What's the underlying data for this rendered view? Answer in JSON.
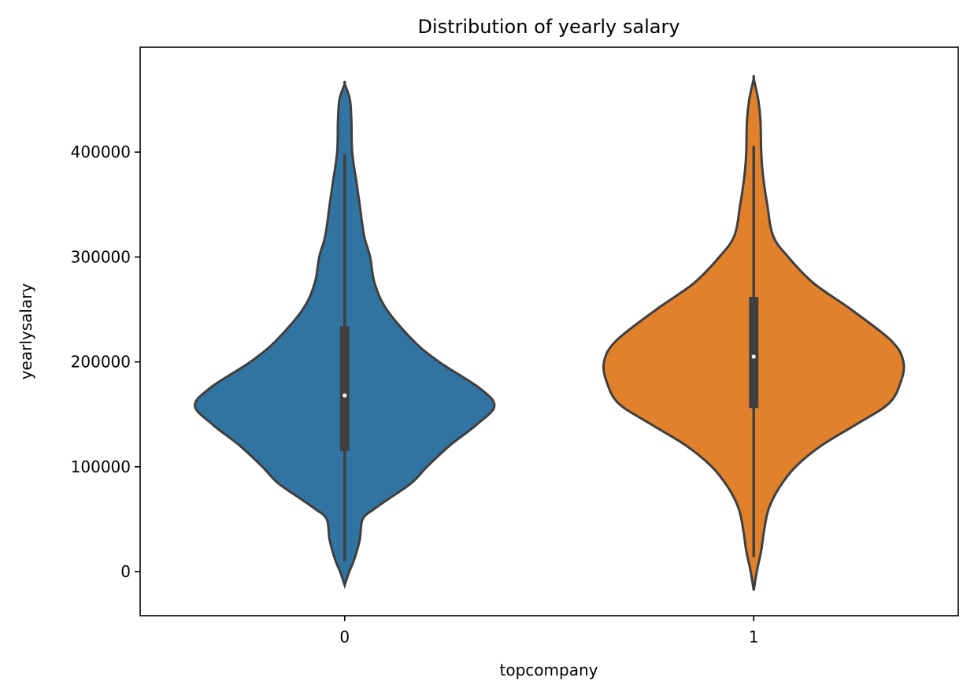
{
  "chart_data": {
    "type": "violin",
    "title": "Distribution of yearly salary",
    "xlabel": "topcompany",
    "ylabel": "yearlysalary",
    "ylim": [
      -42000,
      500000
    ],
    "yticks": [
      0,
      100000,
      200000,
      300000,
      400000
    ],
    "ytick_labels": [
      "0",
      "100000",
      "200000",
      "300000",
      "400000"
    ],
    "grid": false,
    "categories": [
      "0",
      "1"
    ],
    "series": [
      {
        "category": "0",
        "color": "#3274a1",
        "whisker_low": 10000,
        "q1": 115000,
        "median": 168000,
        "q3": 234000,
        "whisker_high": 398000,
        "density_profile": [
          [
            -13000,
            0.0
          ],
          [
            0,
            0.03
          ],
          [
            10000,
            0.06
          ],
          [
            30000,
            0.1
          ],
          [
            50000,
            0.12
          ],
          [
            60000,
            0.2
          ],
          [
            70000,
            0.3
          ],
          [
            85000,
            0.45
          ],
          [
            100000,
            0.55
          ],
          [
            120000,
            0.7
          ],
          [
            140000,
            0.88
          ],
          [
            158000,
            1.0
          ],
          [
            175000,
            0.9
          ],
          [
            200000,
            0.63
          ],
          [
            220000,
            0.46
          ],
          [
            250000,
            0.28
          ],
          [
            275000,
            0.2
          ],
          [
            300000,
            0.17
          ],
          [
            320000,
            0.13
          ],
          [
            350000,
            0.1
          ],
          [
            370000,
            0.08
          ],
          [
            400000,
            0.05
          ],
          [
            430000,
            0.045
          ],
          [
            450000,
            0.035
          ],
          [
            465000,
            0.0
          ]
        ]
      },
      {
        "category": "1",
        "color": "#e1812c",
        "whisker_low": 14000,
        "q1": 156000,
        "median": 205000,
        "q3": 262000,
        "whisker_high": 406000,
        "density_profile": [
          [
            -18000,
            0.0
          ],
          [
            0,
            0.02
          ],
          [
            20000,
            0.05
          ],
          [
            40000,
            0.07
          ],
          [
            60000,
            0.1
          ],
          [
            80000,
            0.17
          ],
          [
            100000,
            0.28
          ],
          [
            120000,
            0.45
          ],
          [
            140000,
            0.68
          ],
          [
            160000,
            0.9
          ],
          [
            180000,
            0.98
          ],
          [
            200000,
            1.0
          ],
          [
            220000,
            0.92
          ],
          [
            250000,
            0.65
          ],
          [
            275000,
            0.4
          ],
          [
            300000,
            0.23
          ],
          [
            320000,
            0.13
          ],
          [
            350000,
            0.09
          ],
          [
            380000,
            0.06
          ],
          [
            400000,
            0.05
          ],
          [
            430000,
            0.045
          ],
          [
            450000,
            0.03
          ],
          [
            470000,
            0.0
          ]
        ]
      }
    ]
  }
}
